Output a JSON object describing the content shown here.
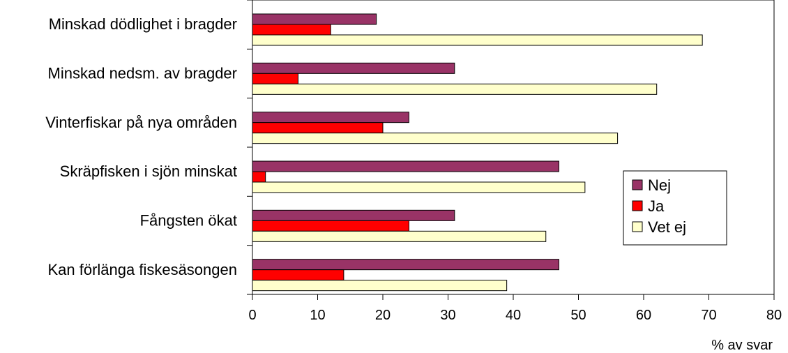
{
  "chart_data": {
    "type": "bar",
    "orientation": "horizontal",
    "categories": [
      "Minskad dödlighet i bragder",
      "Minskad nedsm. av bragder",
      "Vinterfiskar på nya områden",
      "Skräpfisken i sjön minskat",
      "Fångsten ökat",
      "Kan förlänga fiskesäsongen"
    ],
    "series": [
      {
        "name": "Nej",
        "color": "#993366",
        "values": [
          19,
          31,
          24,
          47,
          31,
          47
        ]
      },
      {
        "name": "Ja",
        "color": "#ff0000",
        "values": [
          12,
          7,
          20,
          2,
          24,
          14
        ]
      },
      {
        "name": "Vet ej",
        "color": "#ffffcc",
        "values": [
          69,
          62,
          56,
          51,
          45,
          39
        ]
      }
    ],
    "xlabel": "% av svar",
    "xlim": [
      0,
      80
    ],
    "xticks": [
      0,
      10,
      20,
      30,
      40,
      50,
      60,
      70,
      80
    ],
    "grid": false,
    "legend": "right"
  }
}
